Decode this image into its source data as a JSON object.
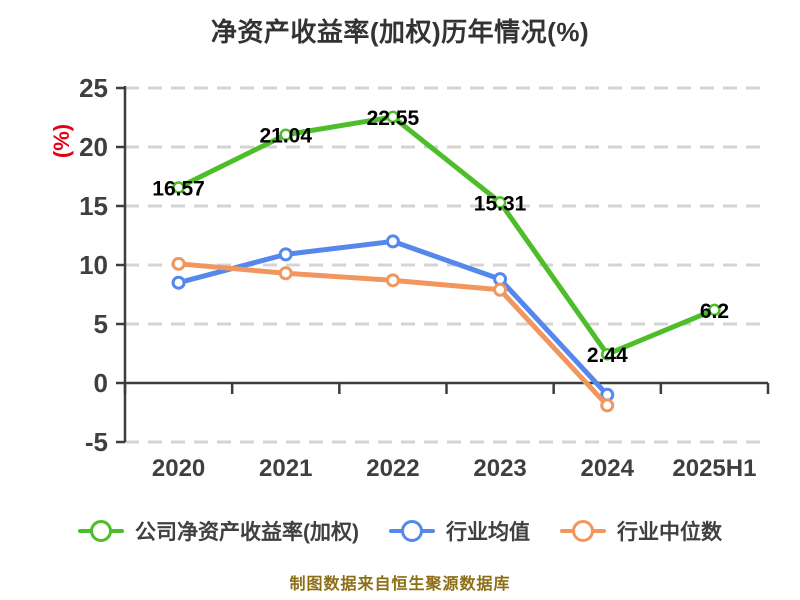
{
  "header": {
    "title": "净资产收益率(加权)历年情况(%)"
  },
  "footer": {
    "text": "制图数据来自恒生聚源数据库"
  },
  "colors": {
    "title_text": "#333333",
    "axis_line": "#3d3d3d",
    "tick_text": "#3f3f3f",
    "gridline": "#d6d4d2",
    "y_axis_name": "#e60012",
    "value_label": "#000000",
    "legend_text": "#404040",
    "footer_text": "#8d6e15",
    "series_green": "#4dbe2a",
    "series_blue": "#5587ec",
    "series_orange": "#f2965f",
    "marker_fill": "#ffffff"
  },
  "chart_data": {
    "type": "line",
    "title": "净资产收益率(加权)历年情况(%)",
    "categories": [
      "2020",
      "2021",
      "2022",
      "2023",
      "2024",
      "2025H1"
    ],
    "series": [
      {
        "name": "公司净资产收益率(加权)",
        "color": "#4dbe2a",
        "values": [
          16.57,
          21.04,
          22.55,
          15.31,
          2.44,
          6.2
        ],
        "point_labels": [
          "16.57",
          "21.04",
          "22.55",
          "15.31",
          "2.44",
          "6.2"
        ]
      },
      {
        "name": "行业均值",
        "color": "#5587ec",
        "values": [
          8.5,
          10.9,
          12.0,
          8.8,
          -1.0,
          null
        ],
        "point_labels": null
      },
      {
        "name": "行业中位数",
        "color": "#f2965f",
        "values": [
          10.1,
          9.3,
          8.7,
          7.9,
          -1.9,
          null
        ],
        "point_labels": null
      }
    ],
    "xlabel": "",
    "ylabel": "(%)",
    "ylim": [
      -5,
      25
    ],
    "yticks": [
      25,
      20,
      15,
      10,
      5,
      0,
      -5
    ],
    "grid": "dashed horizontal, solid line at 0",
    "legend_position": "bottom"
  }
}
